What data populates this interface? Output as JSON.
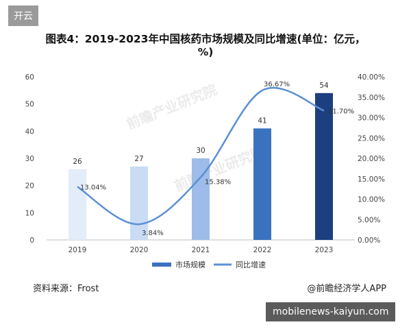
{
  "badge": "开云",
  "chart_data": {
    "type": "bar",
    "title": "图表4：2019-2023年中国核药市场规模及同比增速(单位：亿元，%)",
    "categories": [
      "2019",
      "2020",
      "2021",
      "2022",
      "2023"
    ],
    "series": [
      {
        "name": "市场规模",
        "type": "bar",
        "axis": "left",
        "values": [
          26,
          27,
          30,
          41,
          54
        ],
        "colors": [
          "#e3edf9",
          "#c9dcf4",
          "#9dbce9",
          "#3a72c0",
          "#1c3f7f"
        ]
      },
      {
        "name": "同比增速",
        "type": "line",
        "axis": "right",
        "values": [
          13.04,
          3.84,
          15.38,
          36.67,
          31.7
        ],
        "labels": [
          "13.04%",
          "3.84%",
          "15.38%",
          "36.67%",
          "31.70%"
        ],
        "color": "#5b8fd3"
      }
    ],
    "ylim": [
      0,
      60
    ],
    "yticks": [
      "0",
      "10",
      "20",
      "30",
      "40",
      "50",
      "60"
    ],
    "y2lim": [
      0,
      40
    ],
    "y2ticks": [
      "0.00%",
      "5.00%",
      "10.00%",
      "15.00%",
      "20.00%",
      "25.00%",
      "30.00%",
      "35.00%",
      "40.00%"
    ],
    "legend": [
      "市场规模",
      "同比增速"
    ],
    "legend_position": "bottom",
    "grid": false
  },
  "footer": {
    "source": "资料来源：Frost",
    "credit": "@前瞻经济学人APP"
  },
  "watermark": "mobilenews-kaiyun.com",
  "brand_watermark": "前瞻产业研究院"
}
